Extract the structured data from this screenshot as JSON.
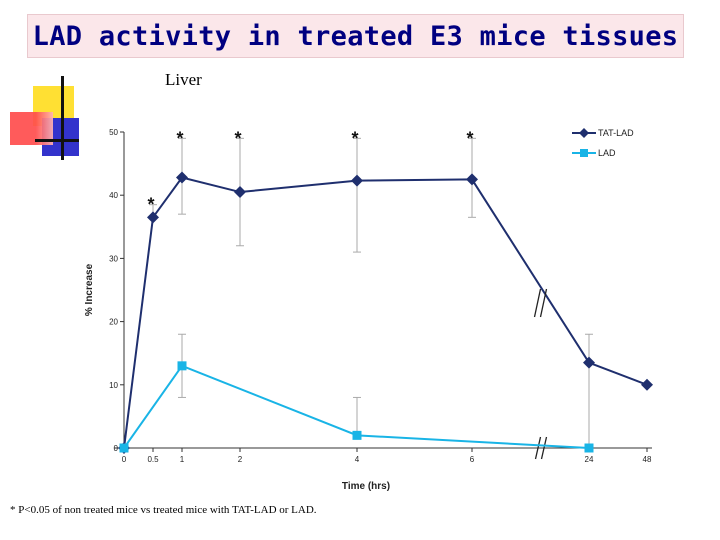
{
  "slide": {
    "title": "LAD activity in treated E3 mice tissues",
    "subtitle": "Liver",
    "footnote": "* P<0.05 of non treated mice vs treated mice with TAT-LAD or LAD."
  },
  "colors": {
    "title_text": "#000080",
    "title_bg": "#fbe7ea",
    "tat_lad": "#1f2f6e",
    "lad": "#19b4e6",
    "deco_yellow": "#ffe033",
    "deco_red": "#ff4d4d",
    "deco_blue": "#3333cc"
  },
  "chart_data": {
    "type": "line",
    "title": "Liver",
    "xlabel": "Time (hrs)",
    "ylabel": "% Increase",
    "x": [
      0,
      0.5,
      1,
      2,
      4,
      6,
      24,
      48
    ],
    "x_tick_labels": [
      "0",
      "0.5",
      "1",
      "2",
      "4",
      "6",
      "24",
      "48"
    ],
    "y_ticks": [
      0,
      10,
      20,
      30,
      40,
      50
    ],
    "ylim": [
      0,
      50
    ],
    "axis_break_between": [
      "6",
      "24"
    ],
    "significance_marker": "*",
    "series": [
      {
        "name": "TAT-LAD",
        "marker": "diamond",
        "x": [
          "0",
          "0.5",
          "1",
          "2",
          "4",
          "6",
          "24",
          "48"
        ],
        "values": [
          0,
          36.5,
          42.8,
          40.5,
          42.3,
          42.5,
          13.5,
          10
        ],
        "error_upper": [
          null,
          38.5,
          49,
          49,
          49,
          49,
          null,
          null
        ],
        "error_lower": [
          null,
          null,
          37,
          32,
          31,
          36.5,
          null,
          null
        ],
        "significant": [
          "0.5",
          "1",
          "2",
          "4",
          "6"
        ]
      },
      {
        "name": "LAD",
        "marker": "square",
        "x": [
          "0",
          "1",
          "4",
          "24"
        ],
        "values": [
          0,
          13,
          2,
          0
        ],
        "error_upper": [
          null,
          18,
          8,
          18
        ],
        "error_lower": [
          null,
          8,
          null,
          null
        ]
      }
    ]
  }
}
